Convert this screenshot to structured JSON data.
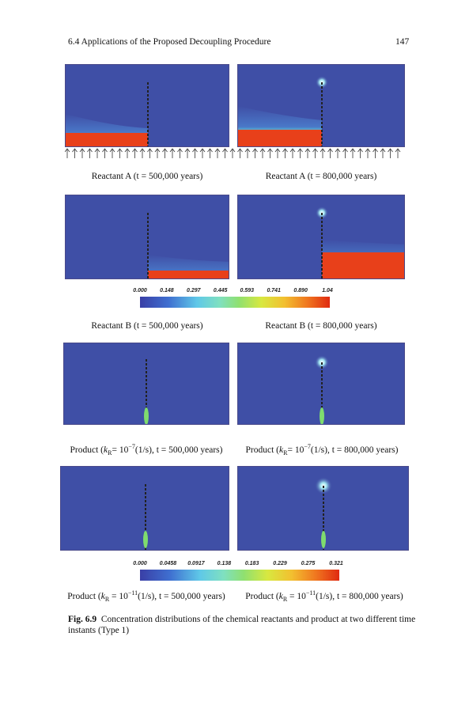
{
  "header": {
    "section": "6.4   Applications of the Proposed Decoupling Procedure",
    "page_number": "147"
  },
  "colorbar_reactant": {
    "ticks": [
      "0.000",
      "0.148",
      "0.297",
      "0.445",
      "0.593",
      "0.741",
      "0.890",
      "1.04"
    ]
  },
  "colorbar_product": {
    "ticks": [
      "0.000",
      "0.0458",
      "0.0917",
      "0.138",
      "0.183",
      "0.229",
      "0.275",
      "0.321"
    ]
  },
  "captions": {
    "reactant_a_500": "Reactant A (t = 500,000 years)",
    "reactant_a_800": "Reactant A (t = 800,000 years)",
    "reactant_b_500": "Reactant B (t = 500,000 years)",
    "reactant_b_800": "Reactant B (t = 800,000 years)",
    "product_7_500": {
      "pre": "Product (",
      "k": "k",
      "sub": "R",
      "eq": "= 10",
      "sup": "−7",
      "post": "(1/s), t = 500,000 years)"
    },
    "product_7_800": {
      "pre": "Product (",
      "k": "k",
      "sub": "R",
      "eq": "= 10",
      "sup": "−7",
      "post": "(1/s), t = 800,000 years)"
    },
    "product_11_500": {
      "pre": "Product (",
      "k": "k",
      "sub": "R",
      "eq": " = 10",
      "sup": "−11",
      "post": "(1/s), t = 500,000 years)"
    },
    "product_11_800": {
      "pre": "Product (",
      "k": "k",
      "sub": "R",
      "eq": " = 10",
      "sup": "−11",
      "post": "(1/s), t = 800,000 years)"
    }
  },
  "figure_caption": {
    "label": "Fig. 6.9",
    "text": "Concentration distributions of the chemical reactants and product at two different time instants (Type 1)"
  },
  "colors": {
    "background_field": "#3f4fa6",
    "high_concentration": "#e8401a",
    "product_plume": "#7fdc6e"
  }
}
